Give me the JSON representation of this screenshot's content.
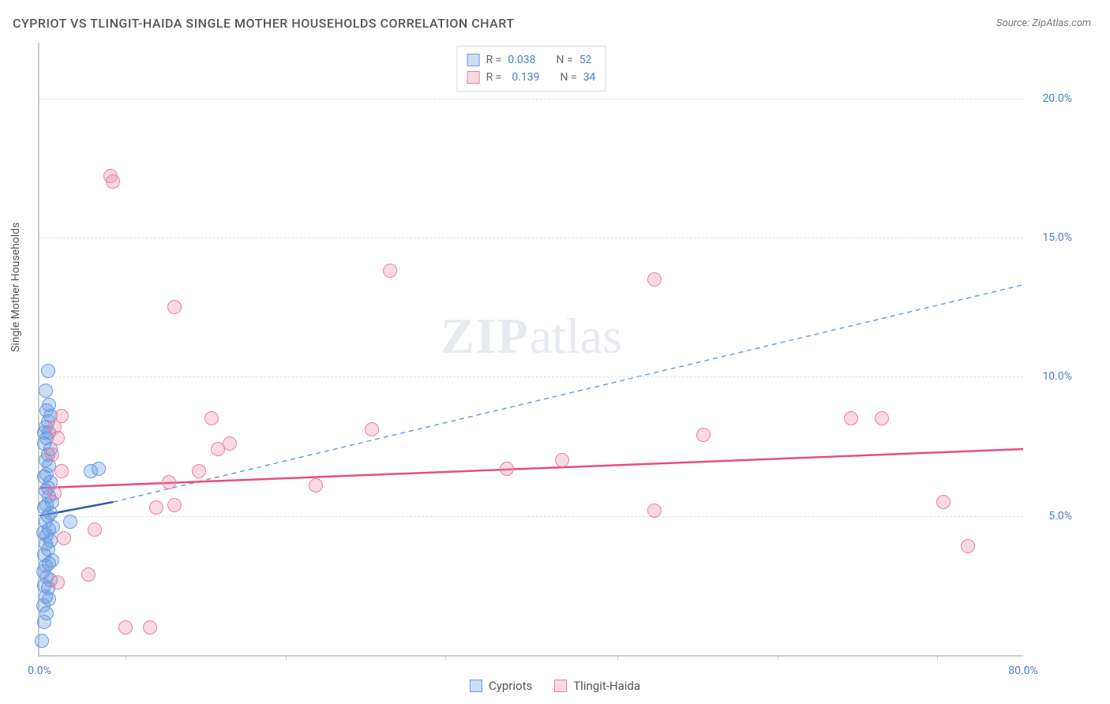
{
  "title": "CYPRIOT VS TLINGIT-HAIDA SINGLE MOTHER HOUSEHOLDS CORRELATION CHART",
  "source": "Source: ZipAtlas.com",
  "y_axis_title": "Single Mother Households",
  "watermark_zip": "ZIP",
  "watermark_atlas": "atlas",
  "chart": {
    "type": "scatter",
    "background_color": "#ffffff",
    "grid_color": "#dddddd",
    "axis_color": "#cccccc",
    "text_color": "#555555",
    "value_color": "#4a7ec9",
    "xlim": [
      0,
      80
    ],
    "ylim": [
      0,
      22
    ],
    "xticks": [
      {
        "v": 0,
        "l": "0.0%"
      },
      {
        "v": 80,
        "l": "80.0%"
      }
    ],
    "xtick_marks": [
      7,
      20,
      33,
      47,
      60,
      73
    ],
    "yticks": [
      {
        "v": 5,
        "l": "5.0%"
      },
      {
        "v": 10,
        "l": "10.0%"
      },
      {
        "v": 15,
        "l": "15.0%"
      },
      {
        "v": 20,
        "l": "20.0%"
      }
    ],
    "marker_radius": 9,
    "series": [
      {
        "name": "Cypriots",
        "fill": "rgba(106,156,224,0.35)",
        "stroke": "#6a9ce0",
        "trend_color": "#2d5fa8",
        "trend_dash": false,
        "trend": {
          "x1": 0,
          "y1": 5.0,
          "x2": 6,
          "y2": 5.5
        },
        "projection_color": "#6a9ce0",
        "projection_dash": true,
        "projection": {
          "x1": 6,
          "y1": 5.5,
          "x2": 80,
          "y2": 13.3
        },
        "R": "0.038",
        "N": "52",
        "points": [
          [
            0.2,
            0.5
          ],
          [
            0.4,
            1.2
          ],
          [
            0.6,
            1.5
          ],
          [
            0.3,
            1.8
          ],
          [
            0.5,
            2.1
          ],
          [
            0.8,
            2.0
          ],
          [
            0.7,
            2.4
          ],
          [
            0.4,
            2.5
          ],
          [
            0.6,
            2.8
          ],
          [
            0.9,
            2.7
          ],
          [
            0.3,
            3.0
          ],
          [
            0.5,
            3.2
          ],
          [
            0.8,
            3.3
          ],
          [
            1.0,
            3.4
          ],
          [
            0.4,
            3.6
          ],
          [
            0.7,
            3.8
          ],
          [
            0.5,
            4.0
          ],
          [
            0.9,
            4.1
          ],
          [
            0.6,
            4.3
          ],
          [
            0.3,
            4.4
          ],
          [
            0.8,
            4.5
          ],
          [
            1.1,
            4.6
          ],
          [
            0.5,
            4.8
          ],
          [
            0.7,
            5.0
          ],
          [
            0.9,
            5.1
          ],
          [
            0.4,
            5.3
          ],
          [
            0.6,
            5.4
          ],
          [
            1.0,
            5.5
          ],
          [
            0.8,
            5.7
          ],
          [
            0.5,
            5.9
          ],
          [
            0.7,
            6.0
          ],
          [
            0.9,
            6.2
          ],
          [
            0.4,
            6.4
          ],
          [
            0.6,
            6.5
          ],
          [
            4.2,
            6.6
          ],
          [
            4.8,
            6.7
          ],
          [
            0.8,
            6.8
          ],
          [
            0.5,
            7.0
          ],
          [
            0.7,
            7.2
          ],
          [
            0.9,
            7.4
          ],
          [
            0.4,
            7.6
          ],
          [
            0.6,
            7.8
          ],
          [
            0.8,
            8.0
          ],
          [
            0.5,
            8.2
          ],
          [
            0.7,
            8.4
          ],
          [
            0.9,
            8.6
          ],
          [
            0.6,
            8.8
          ],
          [
            0.4,
            8.0
          ],
          [
            0.8,
            9.0
          ],
          [
            0.5,
            9.5
          ],
          [
            0.7,
            10.2
          ],
          [
            2.5,
            4.8
          ]
        ]
      },
      {
        "name": "Tlingit-Haida",
        "fill": "rgba(236,128,160,0.30)",
        "stroke": "#ec80a0",
        "trend_color": "#e84d82",
        "trend_dash": false,
        "trend": {
          "x1": 0,
          "y1": 6.0,
          "x2": 80,
          "y2": 7.4
        },
        "R": "0.139",
        "N": "34",
        "points": [
          [
            7.0,
            1.0
          ],
          [
            9.0,
            1.0
          ],
          [
            1.5,
            2.6
          ],
          [
            4.0,
            2.9
          ],
          [
            2.0,
            4.2
          ],
          [
            4.5,
            4.5
          ],
          [
            9.5,
            5.3
          ],
          [
            11.0,
            5.4
          ],
          [
            1.2,
            5.8
          ],
          [
            22.5,
            6.1
          ],
          [
            10.5,
            6.2
          ],
          [
            1.8,
            6.6
          ],
          [
            13.0,
            6.6
          ],
          [
            38.0,
            6.7
          ],
          [
            42.5,
            7.0
          ],
          [
            1.0,
            7.2
          ],
          [
            14.5,
            7.4
          ],
          [
            15.5,
            7.6
          ],
          [
            1.5,
            7.8
          ],
          [
            54.0,
            7.9
          ],
          [
            27.0,
            8.1
          ],
          [
            1.2,
            8.2
          ],
          [
            14.0,
            8.5
          ],
          [
            66.0,
            8.5
          ],
          [
            68.5,
            8.5
          ],
          [
            1.8,
            8.6
          ],
          [
            11.0,
            12.5
          ],
          [
            28.5,
            13.8
          ],
          [
            50.0,
            13.5
          ],
          [
            5.8,
            17.2
          ],
          [
            50.0,
            5.2
          ],
          [
            75.5,
            3.9
          ],
          [
            73.5,
            5.5
          ],
          [
            6.0,
            17.0
          ]
        ]
      }
    ]
  },
  "legend_stats_label_R": "R =",
  "legend_stats_label_N": "N =",
  "legend_bottom": [
    {
      "name": "Cypriots"
    },
    {
      "name": "Tlingit-Haida"
    }
  ]
}
